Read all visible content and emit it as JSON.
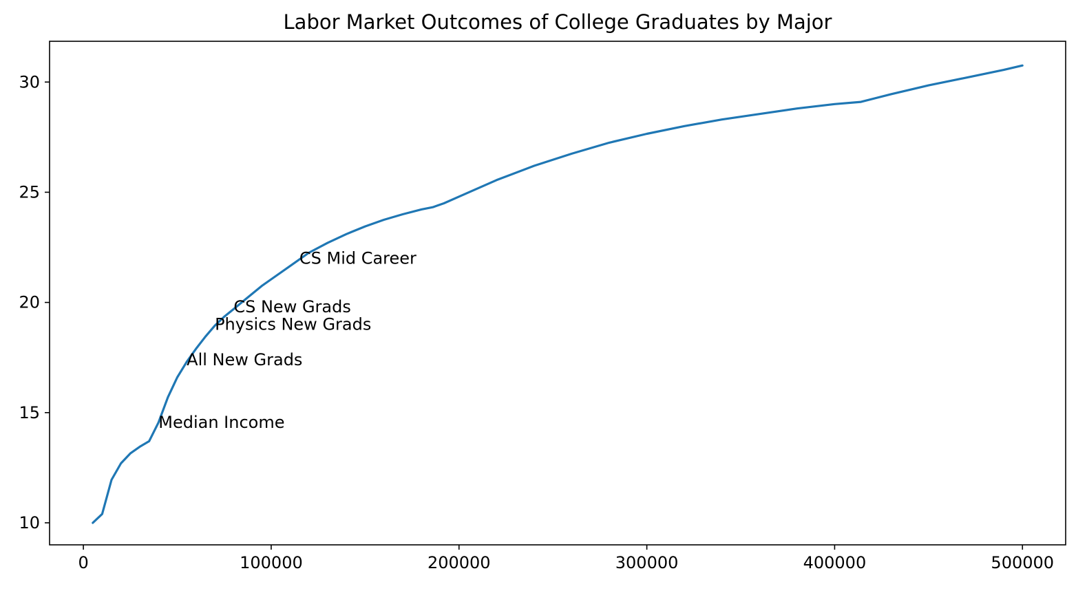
{
  "chart_data": {
    "type": "line",
    "title": "Labor Market Outcomes of College Graduates by Major",
    "xlabel": "",
    "ylabel": "",
    "xlim": [
      -18000,
      523000
    ],
    "ylim": [
      9.0,
      31.85
    ],
    "x_ticks": [
      0,
      100000,
      200000,
      300000,
      400000,
      500000
    ],
    "y_ticks": [
      10,
      15,
      20,
      25,
      30
    ],
    "grid": false,
    "legend": "none",
    "series": [
      {
        "color": "#1f77b4",
        "x": [
          5000,
          10000,
          15000,
          20000,
          25000,
          30000,
          35000,
          40000,
          45000,
          50000,
          55000,
          60000,
          65000,
          70000,
          75000,
          80000,
          85000,
          90000,
          95000,
          100000,
          110000,
          120000,
          130000,
          140000,
          150000,
          160000,
          170000,
          180000,
          186000,
          192000,
          200000,
          220000,
          240000,
          260000,
          280000,
          300000,
          320000,
          340000,
          360000,
          380000,
          400000,
          414000,
          430000,
          450000,
          470000,
          490000,
          500000
        ],
        "y": [
          10.0,
          10.4,
          11.95,
          12.7,
          13.15,
          13.45,
          13.7,
          14.55,
          15.7,
          16.6,
          17.3,
          17.9,
          18.45,
          18.95,
          19.35,
          19.7,
          20.05,
          20.4,
          20.75,
          21.05,
          21.65,
          22.25,
          22.7,
          23.1,
          23.45,
          23.75,
          24.0,
          24.22,
          24.32,
          24.5,
          24.8,
          25.55,
          26.2,
          26.75,
          27.25,
          27.65,
          28.0,
          28.3,
          28.55,
          28.8,
          29.0,
          29.1,
          29.45,
          29.85,
          30.2,
          30.55,
          30.75
        ]
      }
    ],
    "annotations": [
      {
        "text": "CS Mid Career",
        "x": 115000,
        "y": 21.75
      },
      {
        "text": "CS New Grads",
        "x": 80000,
        "y": 19.55
      },
      {
        "text": "Physics New Grads",
        "x": 70000,
        "y": 18.75
      },
      {
        "text": "All New Grads",
        "x": 55000,
        "y": 17.15
      },
      {
        "text": "Median Income",
        "x": 40000,
        "y": 14.3
      }
    ]
  }
}
